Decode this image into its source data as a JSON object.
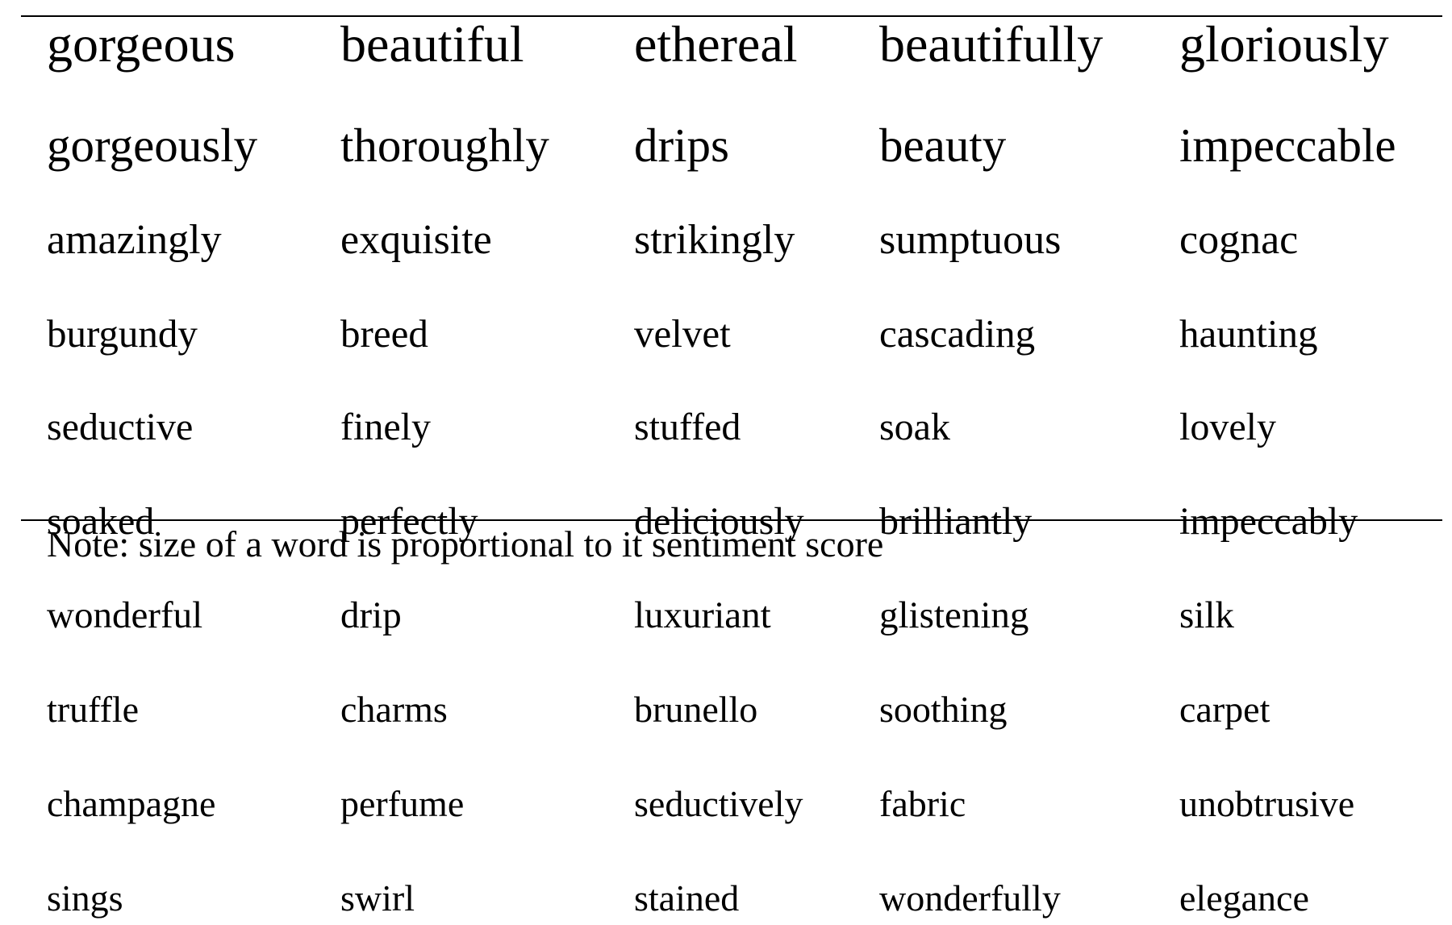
{
  "table": {
    "rows": [
      [
        "gorgeous",
        "beautiful",
        "ethereal",
        "beautifully",
        "gloriously"
      ],
      [
        "gorgeously",
        "thoroughly",
        "drips",
        "beauty",
        "impeccable"
      ],
      [
        "amazingly",
        "exquisite",
        "strikingly",
        "sumptuous",
        "cognac"
      ],
      [
        "burgundy",
        "breed",
        "velvet",
        "cascading",
        "haunting"
      ],
      [
        "seductive",
        "finely",
        "stuffed",
        "soak",
        "lovely"
      ],
      [
        "soaked",
        "perfectly",
        "deliciously",
        "brilliantly",
        "impeccably"
      ],
      [
        "wonderful",
        "drip",
        "luxuriant",
        "glistening",
        "silk"
      ],
      [
        "truffle",
        "charms",
        "brunello",
        "soothing",
        "carpet"
      ],
      [
        "champagne",
        "perfume",
        "seductively",
        "fabric",
        "unobtrusive"
      ],
      [
        "sings",
        "swirl",
        "stained",
        "wonderfully",
        "elegance"
      ]
    ]
  },
  "note": "Note: size of a word is proportional to it sentiment score"
}
